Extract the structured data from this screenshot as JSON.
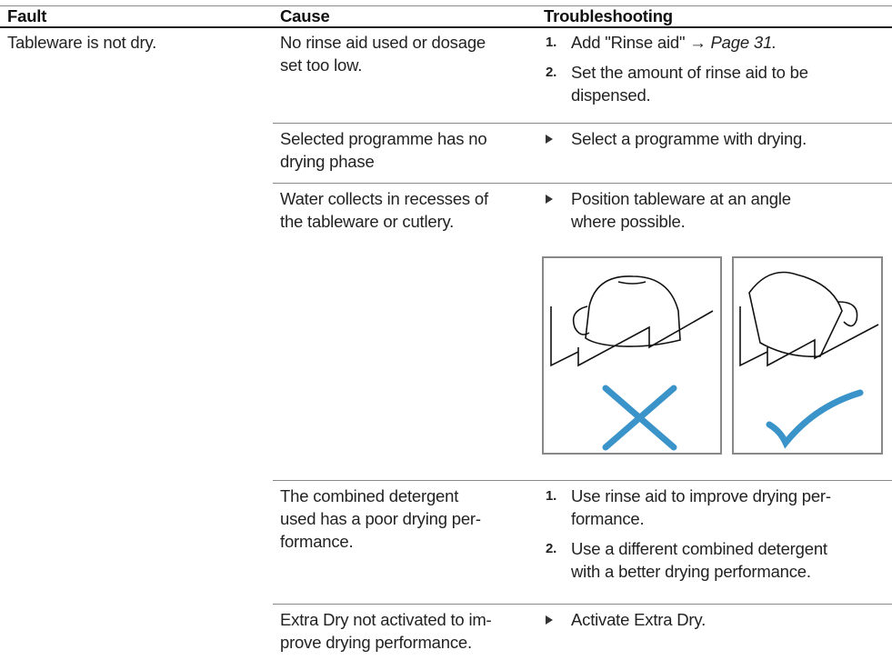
{
  "table": {
    "headers": [
      "Fault",
      "Cause",
      "Troubleshooting"
    ],
    "fault": "Tableware is not dry.",
    "rows": [
      {
        "cause": [
          "No rinse aid used or dosage",
          "set too low."
        ],
        "steps": [
          {
            "marker": "1.",
            "lines": [
              "Add \"Rinse aid\" →"
            ],
            "ref": "Page 31."
          },
          {
            "marker": "2.",
            "lines": [
              "Set the amount of rinse aid to be",
              "dispensed."
            ]
          }
        ]
      },
      {
        "cause": [
          "Selected programme has no",
          "drying phase"
        ],
        "steps": [
          {
            "lines": [
              "Select a programme with drying."
            ]
          }
        ]
      },
      {
        "cause": [
          "Water collects in recesses of",
          "the tableware or cutlery."
        ],
        "steps": [
          {
            "lines": [
              "Position tableware at an angle",
              "where possible."
            ]
          }
        ]
      },
      {
        "cause": [
          "The combined detergent",
          "used has a poor drying per-",
          "formance."
        ],
        "steps": [
          {
            "marker": "1.",
            "lines": [
              "Use rinse aid to improve drying per-",
              "formance."
            ]
          },
          {
            "marker": "2.",
            "lines": [
              "Use a different combined detergent",
              "with a better drying performance."
            ]
          }
        ]
      },
      {
        "cause": [
          "Extra Dry not activated to im-",
          "prove drying performance."
        ],
        "steps": [
          {
            "lines": [
              "Activate Extra Dry."
            ]
          }
        ]
      }
    ]
  }
}
